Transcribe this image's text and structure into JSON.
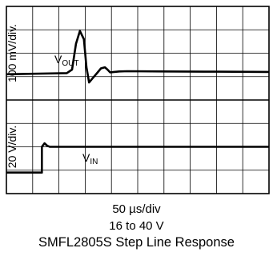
{
  "chart_data": {
    "type": "line",
    "title": "SMFL2805S Step Line Response",
    "subtitle": "16 to 40 V",
    "x_scale": "50 µs/div",
    "x_divisions": 10,
    "x_range_div": [
      0,
      10
    ],
    "grid": true,
    "panels": [
      {
        "ylabel": "100 mV/div.",
        "y_divisions": 4,
        "y_range_div": [
          0,
          4
        ],
        "series": [
          {
            "name": "V_OUT",
            "label_main": "V",
            "label_sub": "OUT",
            "x_div": [
              0.0,
              2.3,
              2.5,
              2.65,
              2.8,
              2.95,
              3.05,
              3.15,
              3.3,
              3.45,
              3.6,
              3.75,
              3.85,
              3.95,
              4.1,
              4.3,
              4.6,
              6.0,
              8.0,
              10.0
            ],
            "y_div": [
              1.1,
              1.15,
              1.3,
              2.4,
              2.95,
              2.6,
              1.4,
              0.75,
              0.95,
              1.15,
              1.35,
              1.4,
              1.3,
              1.18,
              1.2,
              1.22,
              1.23,
              1.22,
              1.21,
              1.2
            ]
          }
        ]
      },
      {
        "ylabel": "20 V/div.",
        "y_divisions": 4,
        "y_range_div": [
          0,
          4
        ],
        "series": [
          {
            "name": "V_IN",
            "label_main": "V",
            "label_sub": "IN",
            "x_div": [
              0.0,
              1.35,
              1.35,
              1.45,
              1.55,
              1.65,
              10.0
            ],
            "y_div": [
              0.9,
              0.9,
              2.0,
              2.15,
              2.05,
              2.0,
              2.0
            ]
          }
        ]
      }
    ]
  }
}
